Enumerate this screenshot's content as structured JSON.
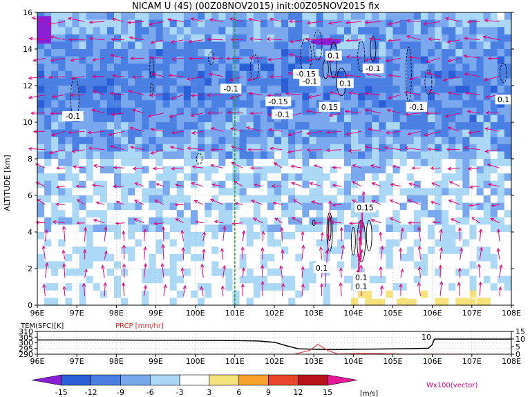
{
  "title": "NICAM U (4S) (00Z08NOV2015) init:00Z05NOV2015 fix",
  "colors": {
    "vector": "#e0007a",
    "contour": "#000000",
    "marker_line": "#22aa22",
    "temperature": "#000000",
    "precip": "#e8262a"
  },
  "chart_data": [
    {
      "type": "heatmap",
      "title": "NICAM U (4S) (00Z08NOV2015) init:00Z05NOV2015 fix",
      "xlabel": "",
      "ylabel": "ALTITUDE [km]",
      "x_ticks": [
        "96E",
        "97E",
        "98E",
        "99E",
        "100E",
        "101E",
        "102E",
        "103E",
        "104E",
        "105E",
        "106E",
        "107E",
        "108E"
      ],
      "y_ticks": [
        "0",
        "2",
        "4",
        "6",
        "8",
        "10",
        "12",
        "14",
        "16"
      ],
      "xlim": [
        96,
        108
      ],
      "ylim": [
        0,
        16
      ],
      "grid": true,
      "marker_longitude": 101,
      "colorbar": {
        "levels": [
          "-15",
          "-12",
          "-9",
          "-6",
          "-3",
          "3",
          "6",
          "9",
          "12",
          "15"
        ],
        "colors": [
          "#8a1fd6",
          "#2a5fd8",
          "#4a80e4",
          "#7aa8ee",
          "#abd8f5",
          "#ffffff",
          "#f6e27a",
          "#f7a12b",
          "#e8452a",
          "#b8131b",
          "#e8179a"
        ],
        "unit": "[m/s]"
      },
      "vector_label": "Wx100(vector)",
      "contour_labels": [
        {
          "text": "-0.1",
          "lon": 96.9,
          "alt": 10.3
        },
        {
          "text": "-0.1",
          "lon": 100.9,
          "alt": 11.8
        },
        {
          "text": "-0.15",
          "lon": 102.1,
          "alt": 11.1
        },
        {
          "text": "-0.1",
          "lon": 102.2,
          "alt": 10.4
        },
        {
          "text": "-0.15",
          "lon": 102.8,
          "alt": 12.6
        },
        {
          "text": "-0.1",
          "lon": 102.9,
          "alt": 12.2
        },
        {
          "text": "0.1",
          "lon": 103.5,
          "alt": 13.6
        },
        {
          "text": "0.1",
          "lon": 103.8,
          "alt": 12.1
        },
        {
          "text": "0.15",
          "lon": 103.4,
          "alt": 10.8
        },
        {
          "text": "-0.1",
          "lon": 104.5,
          "alt": 12.9
        },
        {
          "text": "-0.1",
          "lon": 105.6,
          "alt": 10.8
        },
        {
          "text": "0.1",
          "lon": 107.8,
          "alt": 11.2
        },
        {
          "text": "0.15",
          "lon": 104.3,
          "alt": 5.3
        },
        {
          "text": "0.1",
          "lon": 103.2,
          "alt": 2.0
        },
        {
          "text": "0.1",
          "lon": 104.2,
          "alt": 1.5
        },
        {
          "text": "0.1",
          "lon": 104.2,
          "alt": 1.0
        }
      ]
    },
    {
      "type": "line",
      "xlabel": "",
      "left_label": "TEM(SFC)[K]",
      "right_label": "PRCP [mm/hr]",
      "x_ticks": [
        "96E",
        "97E",
        "98E",
        "99E",
        "100E",
        "101E",
        "102E",
        "103E",
        "104E",
        "105E",
        "106E",
        "107E",
        "108E"
      ],
      "left_ticks": [
        "290",
        "295",
        "300",
        "305",
        "310"
      ],
      "right_ticks": [
        "0",
        "5",
        "10",
        "15"
      ],
      "xlim": [
        96,
        108
      ],
      "left_ylim": [
        290,
        310
      ],
      "right_ylim": [
        0,
        15
      ],
      "annotation": "10",
      "series": [
        {
          "name": "TEM(SFC)[K]",
          "x": [
            96,
            97,
            98,
            99,
            100,
            101,
            101.6,
            102,
            102.3,
            102.6,
            103,
            103.5,
            104,
            104.5,
            105,
            105.5,
            105.9,
            106,
            106.05,
            106.5,
            107,
            108
          ],
          "values": [
            302.5,
            302.5,
            302.4,
            302.3,
            302.2,
            302.0,
            301.6,
            300.5,
            297.5,
            294.8,
            294.3,
            294.0,
            294.3,
            294.5,
            294.7,
            294.9,
            295.2,
            298.5,
            303.3,
            303.3,
            303.3,
            303.3
          ]
        },
        {
          "name": "PRCP [mm/hr]",
          "x": [
            96,
            100,
            102.5,
            102.9,
            103.1,
            103.35,
            103.6,
            103.9,
            104.3,
            104.6,
            105.2,
            108
          ],
          "values": [
            0,
            0,
            0,
            2.5,
            6.5,
            2.5,
            0.2,
            0.3,
            0.7,
            0.5,
            0.1,
            0
          ]
        }
      ]
    }
  ]
}
